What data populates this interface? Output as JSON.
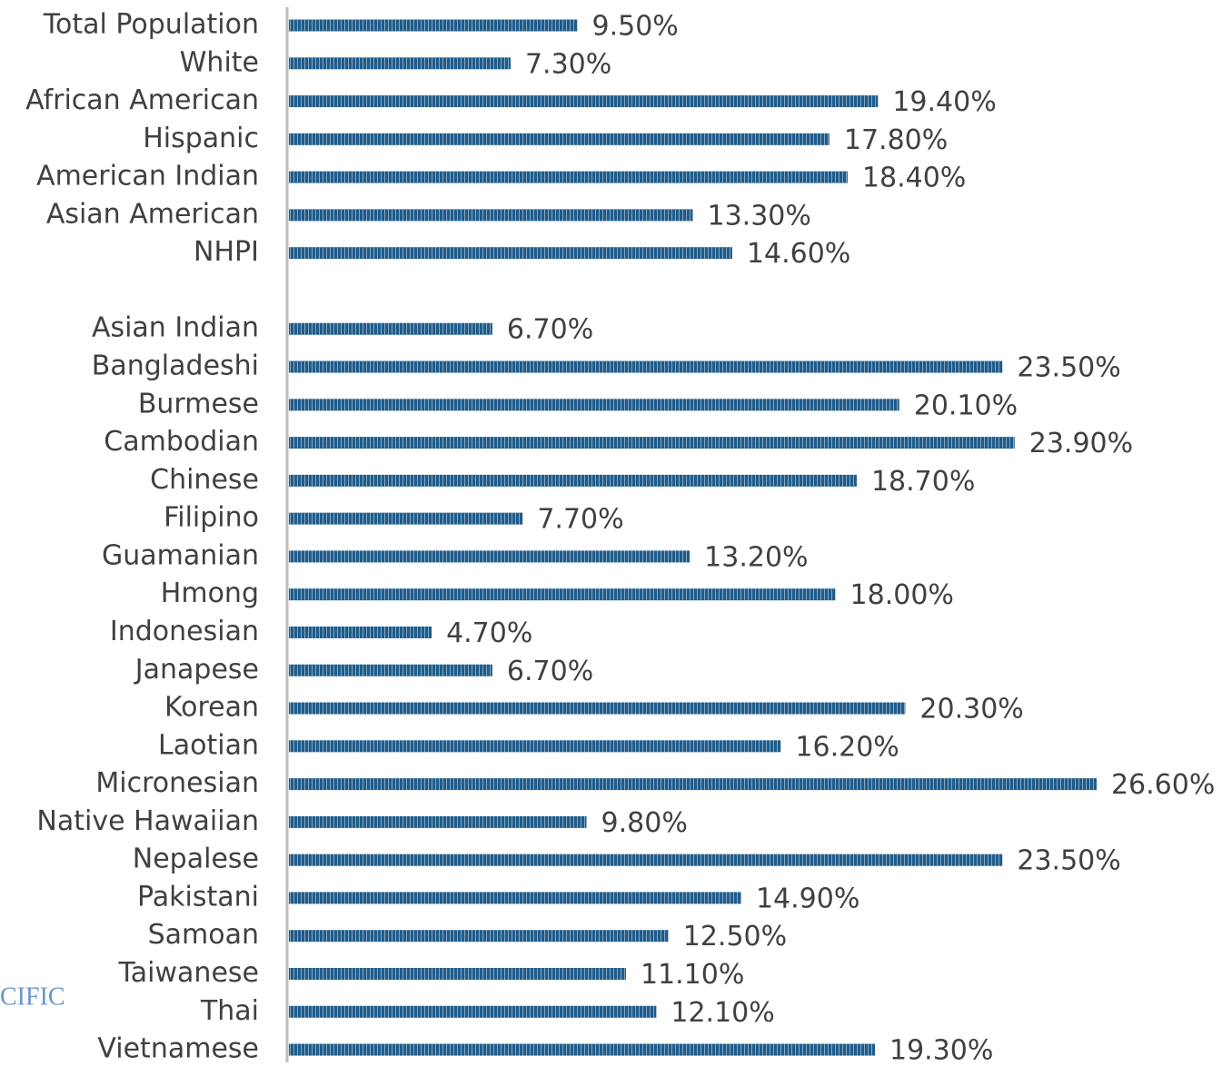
{
  "chart_data": {
    "type": "bar",
    "orientation": "horizontal",
    "color": "#1f5c8b",
    "annotation": "CIFIC",
    "categories": [
      "Total Population",
      "White",
      "African American",
      "Hispanic",
      "American Indian",
      "Asian American",
      "NHPI",
      null,
      "Asian Indian",
      "Bangladeshi",
      "Burmese",
      "Cambodian",
      "Chinese",
      "Filipino",
      "Guamanian",
      "Hmong",
      "Indonesian",
      "Janapese",
      "Korean",
      "Laotian",
      "Micronesian",
      "Native Hawaiian",
      "Nepalese",
      "Pakistani",
      "Samoan",
      "Taiwanese",
      "Thai",
      "Vietnamese"
    ],
    "values": [
      9.5,
      7.3,
      19.4,
      17.8,
      18.4,
      13.3,
      14.6,
      null,
      6.7,
      23.5,
      20.1,
      23.9,
      18.7,
      7.7,
      13.2,
      18.0,
      4.7,
      6.7,
      20.3,
      16.2,
      26.6,
      9.8,
      23.5,
      14.9,
      12.5,
      11.1,
      12.1,
      19.3
    ],
    "value_labels": [
      "9.50%",
      "7.30%",
      "19.40%",
      "17.80%",
      "18.40%",
      "13.30%",
      "14.60%",
      null,
      "6.70%",
      "23.50%",
      "20.10%",
      "23.90%",
      "18.70%",
      "7.70%",
      "13.20%",
      "18.00%",
      "4.70%",
      "6.70%",
      "20.30%",
      "16.20%",
      "26.60%",
      "9.80%",
      "23.50%",
      "14.90%",
      "12.50%",
      "11.10%",
      "12.10%",
      "19.30%"
    ]
  }
}
